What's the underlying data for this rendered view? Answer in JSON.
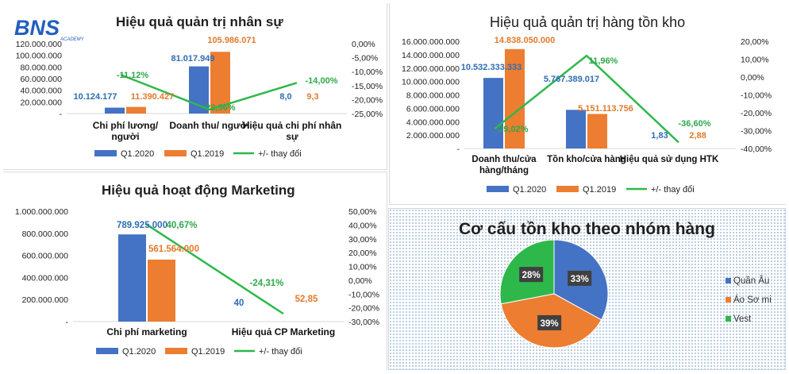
{
  "brand": {
    "logo_text": "BNS",
    "logo_sub": "ACADEMY",
    "color": "#1f5fbf"
  },
  "colors": {
    "q2020": "#4472c4",
    "q2019": "#ed7d31",
    "change": "#2eb84b",
    "pie_vest": "#2eb84b"
  },
  "legend": {
    "q2020": "Q1.2020",
    "q2019": "Q1.2019",
    "change": "+/- thay đổi"
  },
  "chart_data": [
    {
      "type": "bar",
      "title": "Hiệu quả quản trị nhân sự",
      "categories": [
        "Chi phí lương/ người",
        "Doanh thu/ người",
        "Hiệu quả chi phí nhân sự"
      ],
      "series": [
        {
          "name": "Q1.2020",
          "values": [
            10124177,
            81017949,
            8.0
          ],
          "labels": [
            "10.124.177",
            "81.017.949",
            "8,0"
          ]
        },
        {
          "name": "Q1.2019",
          "values": [
            11390427,
            105986071,
            9.3
          ],
          "labels": [
            "11.390.427",
            "105.986.071",
            "9,3"
          ]
        }
      ],
      "line": {
        "name": "+/- thay đổi",
        "values": [
          -11.12,
          -23.56,
          -14.0
        ],
        "labels": [
          "-11,12%",
          "-23,56%",
          "-14,00%"
        ]
      },
      "yticks_left": [
        "120.000.000",
        "100.000.000",
        "80.000.000",
        "60.000.000",
        "40.000.000",
        "20.000.000",
        "-"
      ],
      "ylim_left": [
        0,
        120000000
      ],
      "yticks_right": [
        "0,00%",
        "-5,00%",
        "-10,00%",
        "-15,00%",
        "-20,00%",
        "-25,00%"
      ],
      "ylim_right": [
        -25,
        0
      ],
      "legend_position": "bottom"
    },
    {
      "type": "bar",
      "title": "Hiệu quả quản trị hàng tồn kho",
      "categories": [
        "Doanh thu/cửa hàng/tháng",
        "Tồn kho/cửa hàng",
        "Hiệu quả sử dụng HTK"
      ],
      "series": [
        {
          "name": "Q1.2020",
          "values": [
            10532333333,
            5767389017,
            1.83
          ],
          "labels": [
            "10.532.333.333",
            "5.767.389.017",
            "1,83"
          ]
        },
        {
          "name": "Q1.2019",
          "values": [
            14838050000,
            5151113756,
            2.88
          ],
          "labels": [
            "14.838.050.000",
            "5.151.113.756",
            "2,88"
          ]
        }
      ],
      "line": {
        "name": "+/- thay đổi",
        "values": [
          -29.02,
          11.96,
          -36.6
        ],
        "labels": [
          "-29,02%",
          "11,96%",
          "-36,60%"
        ]
      },
      "yticks_left": [
        "16.000.000.000",
        "14.000.000.000",
        "12.000.000.000",
        "10.000.000.000",
        "8.000.000.000",
        "6.000.000.000",
        "4.000.000.000",
        "2.000.000.000",
        "-"
      ],
      "ylim_left": [
        0,
        16000000000
      ],
      "yticks_right": [
        "20,00%",
        "10,00%",
        "0,00%",
        "-10,00%",
        "-20,00%",
        "-30,00%",
        "-40,00%"
      ],
      "ylim_right": [
        -40,
        20
      ],
      "legend_position": "bottom"
    },
    {
      "type": "bar",
      "title": "Hiệu quả hoạt động Marketing",
      "categories": [
        "Chi phí marketing",
        "Hiệu quả CP Marketing"
      ],
      "series": [
        {
          "name": "Q1.2020",
          "values": [
            789925000,
            40
          ],
          "labels": [
            "789.925.000",
            "40"
          ]
        },
        {
          "name": "Q1.2019",
          "values": [
            561564000,
            52.85
          ],
          "labels": [
            "561.564.000",
            "52,85"
          ]
        }
      ],
      "line": {
        "name": "+/- thay đổi",
        "values": [
          40.67,
          -24.31
        ],
        "labels": [
          "40,67%",
          "-24,31%"
        ]
      },
      "yticks_left": [
        "1.000.000.000",
        "800.000.000",
        "600.000.000",
        "400.000.000",
        "200.000.000",
        "-"
      ],
      "ylim_left": [
        0,
        1000000000
      ],
      "yticks_right": [
        "50,00%",
        "40,00%",
        "30,00%",
        "20,00%",
        "10,00%",
        "0,00%",
        "-10,00%",
        "-20,00%",
        "-30,00%"
      ],
      "ylim_right": [
        -30,
        50
      ],
      "legend_position": "bottom"
    },
    {
      "type": "pie",
      "title": "Cơ cấu tồn kho theo nhóm hàng",
      "slices": [
        {
          "name": "Quần Âu",
          "value": 33,
          "label": "33%",
          "color": "#4472c4"
        },
        {
          "name": "Áo Sơ mi",
          "value": 39,
          "label": "39%",
          "color": "#ed7d31"
        },
        {
          "name": "Vest",
          "value": 28,
          "label": "28%",
          "color": "#2eb84b"
        }
      ],
      "legend_position": "right"
    }
  ]
}
